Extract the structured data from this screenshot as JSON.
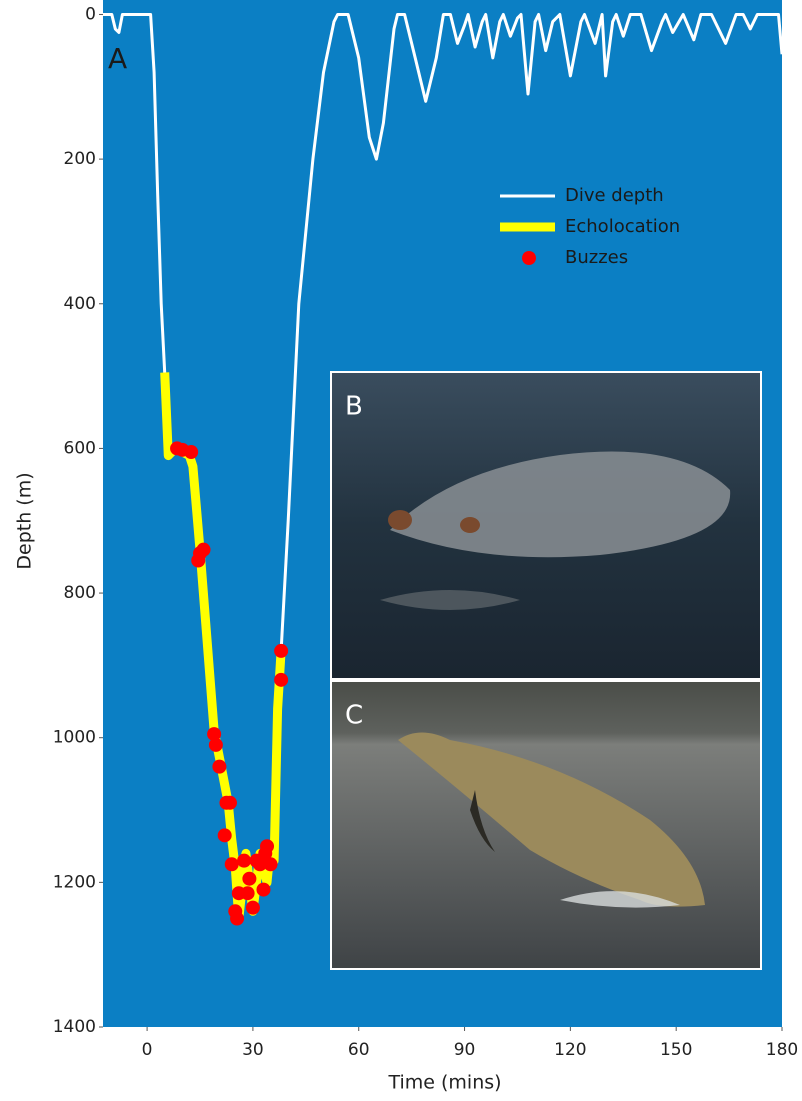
{
  "chart_data": {
    "type": "line",
    "panel_label": "A",
    "inset_labels": [
      "B",
      "C"
    ],
    "x_label": "Time (mins)",
    "y_label": "Depth (m)",
    "xlim": [
      -12.5,
      180
    ],
    "ylim": [
      1400,
      -20
    ],
    "xticks": [
      0,
      30,
      60,
      90,
      120,
      150,
      180
    ],
    "yticks": [
      0,
      200,
      400,
      600,
      800,
      1000,
      1200,
      1400
    ],
    "background": "#0b7fc4",
    "grid": false,
    "legend": "upper right",
    "series": [
      {
        "name": "Dive depth",
        "color": "#ffffff",
        "style": "line",
        "x": [
          -12.5,
          -10,
          -9,
          -8,
          -7,
          1,
          2,
          3,
          4,
          5,
          6,
          8,
          10,
          12,
          13,
          15,
          19,
          21,
          23,
          24,
          25,
          26,
          28,
          30,
          32,
          34,
          35,
          36,
          37,
          38,
          40,
          43,
          47,
          50,
          53,
          54,
          57,
          60,
          63,
          65,
          67,
          70,
          71,
          73,
          76,
          79,
          82,
          84,
          86,
          88,
          90,
          91,
          93,
          95,
          96,
          98,
          100,
          101,
          103,
          105,
          106,
          108,
          110,
          111,
          113,
          115,
          117,
          120,
          123,
          124,
          127,
          129,
          130,
          132,
          133,
          135,
          137,
          140,
          143,
          146,
          147,
          149,
          152,
          155,
          157,
          160,
          164,
          167,
          169,
          171,
          173,
          179,
          180
        ],
        "values": [
          0,
          0,
          20,
          25,
          0,
          0,
          80,
          250,
          400,
          495,
          610,
          600,
          605,
          610,
          625,
          740,
          990,
          1040,
          1090,
          1140,
          1180,
          1250,
          1160,
          1240,
          1160,
          1200,
          1150,
          1170,
          960,
          880,
          700,
          400,
          200,
          80,
          10,
          0,
          0,
          60,
          170,
          200,
          150,
          20,
          0,
          0,
          60,
          120,
          60,
          0,
          0,
          40,
          15,
          0,
          45,
          10,
          0,
          60,
          10,
          0,
          30,
          5,
          0,
          110,
          10,
          0,
          50,
          10,
          0,
          85,
          10,
          0,
          40,
          0,
          85,
          10,
          0,
          30,
          0,
          0,
          50,
          10,
          0,
          25,
          0,
          35,
          0,
          0,
          40,
          0,
          0,
          20,
          0,
          0,
          55
        ]
      },
      {
        "name": "Echolocation",
        "color": "#ffff00",
        "style": "line",
        "x": [
          5,
          6,
          8,
          10,
          12,
          13,
          15,
          19,
          21,
          23,
          24,
          25,
          26,
          28,
          30,
          32,
          34,
          35,
          36,
          37,
          38
        ],
        "values": [
          495,
          610,
          600,
          605,
          610,
          625,
          740,
          990,
          1040,
          1090,
          1140,
          1180,
          1250,
          1160,
          1240,
          1160,
          1200,
          1150,
          1170,
          960,
          880
        ]
      },
      {
        "name": "Buzzes",
        "color": "#ff0000",
        "style": "scatter",
        "x": [
          8.5,
          10,
          12.5,
          14.5,
          15,
          16,
          19,
          19.5,
          20.5,
          22,
          22.5,
          23.5,
          24,
          25,
          25.5,
          26,
          27.5,
          28.5,
          29,
          30,
          31,
          32,
          33,
          33.5,
          34,
          35,
          38,
          38
        ],
        "values": [
          600,
          602,
          605,
          755,
          745,
          740,
          995,
          1010,
          1040,
          1135,
          1090,
          1090,
          1175,
          1240,
          1250,
          1215,
          1170,
          1215,
          1195,
          1235,
          1170,
          1175,
          1210,
          1160,
          1150,
          1175,
          880,
          920
        ]
      }
    ]
  }
}
